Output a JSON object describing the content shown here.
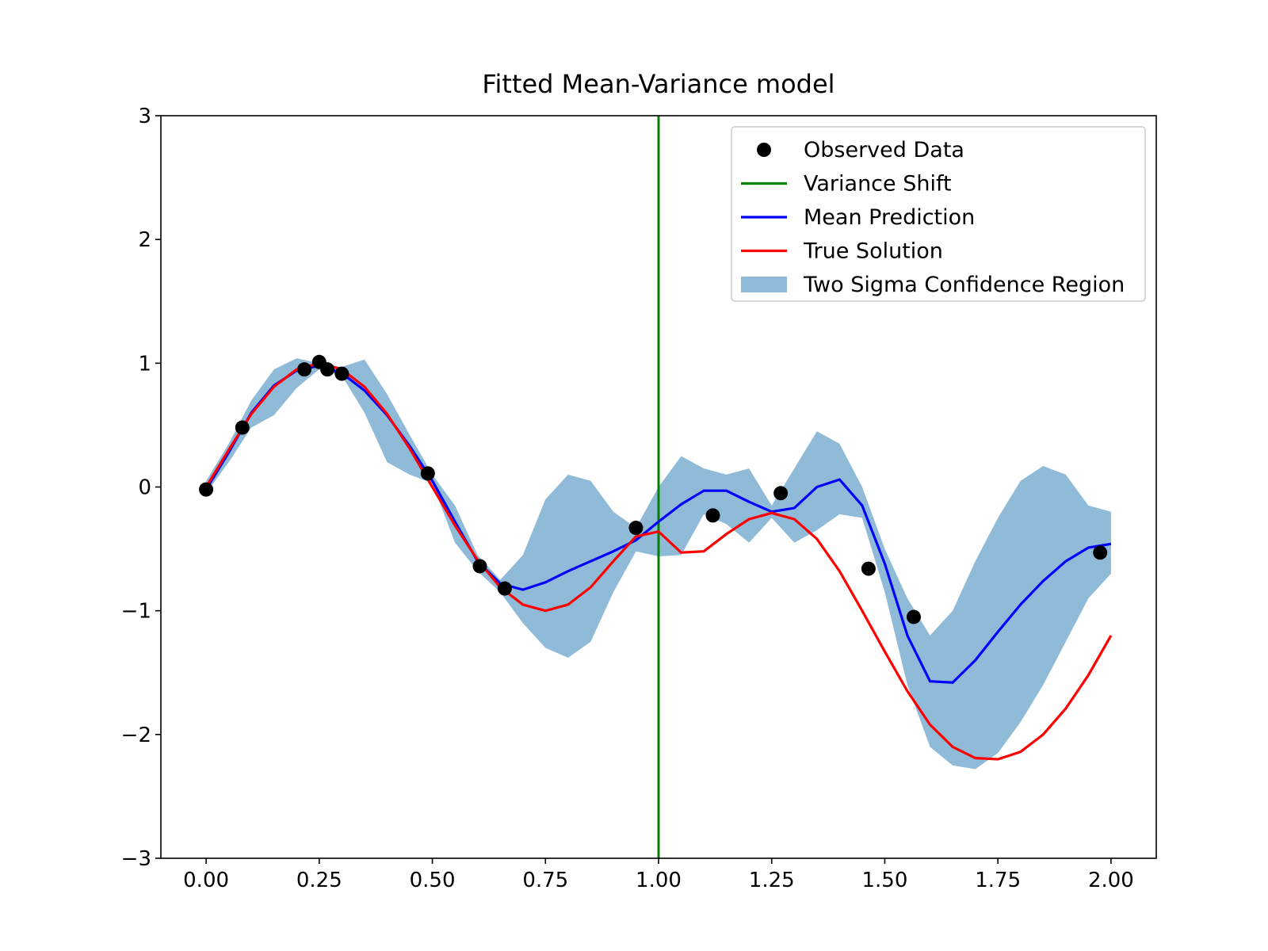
{
  "chart_data": {
    "type": "line",
    "title": "Fitted Mean-Variance model",
    "x": [
      0,
      0.05,
      0.1,
      0.15,
      0.2,
      0.25,
      0.3,
      0.35,
      0.4,
      0.45,
      0.5,
      0.55,
      0.6,
      0.65,
      0.7,
      0.75,
      0.8,
      0.85,
      0.9,
      0.95,
      1.0,
      1.05,
      1.1,
      1.15,
      1.2,
      1.25,
      1.3,
      1.35,
      1.4,
      1.45,
      1.5,
      1.55,
      1.6,
      1.65,
      1.7,
      1.75,
      1.8,
      1.85,
      1.9,
      1.95,
      2.0
    ],
    "series": [
      {
        "name": "Mean Prediction",
        "color": "#0000ff",
        "values": [
          -0.02,
          0.28,
          0.6,
          0.82,
          0.94,
          0.98,
          0.92,
          0.78,
          0.58,
          0.33,
          0.05,
          -0.28,
          -0.6,
          -0.78,
          -0.83,
          -0.77,
          -0.68,
          -0.6,
          -0.52,
          -0.43,
          -0.28,
          -0.14,
          -0.03,
          -0.03,
          -0.12,
          -0.2,
          -0.17,
          0.0,
          0.06,
          -0.15,
          -0.62,
          -1.2,
          -1.57,
          -1.58,
          -1.4,
          -1.17,
          -0.95,
          -0.76,
          -0.6,
          -0.49,
          -0.46
        ]
      },
      {
        "name": "True Solution",
        "color": "#ff0000",
        "values": [
          0,
          0.3,
          0.59,
          0.81,
          0.95,
          1.0,
          0.95,
          0.81,
          0.59,
          0.31,
          0.0,
          -0.31,
          -0.59,
          -0.81,
          -0.95,
          -1.0,
          -0.95,
          -0.81,
          -0.6,
          -0.4,
          -0.36,
          -0.53,
          -0.52,
          -0.38,
          -0.26,
          -0.21,
          -0.26,
          -0.42,
          -0.68,
          -1.0,
          -1.33,
          -1.65,
          -1.92,
          -2.1,
          -2.19,
          -2.2,
          -2.14,
          -2.0,
          -1.79,
          -1.52,
          -1.2
        ]
      }
    ],
    "band": {
      "name": "Two Sigma Confidence Region",
      "color": "#1f77b4",
      "upper": [
        0.05,
        0.35,
        0.7,
        0.95,
        1.04,
        1.0,
        0.97,
        1.03,
        0.75,
        0.42,
        0.1,
        -0.15,
        -0.55,
        -0.75,
        -0.55,
        -0.1,
        0.1,
        0.05,
        -0.2,
        -0.33,
        0.0,
        0.25,
        0.15,
        0.1,
        0.15,
        -0.15,
        0.15,
        0.45,
        0.35,
        0.0,
        -0.5,
        -0.9,
        -1.2,
        -1.0,
        -0.6,
        -0.25,
        0.05,
        0.17,
        0.1,
        -0.15,
        -0.2
      ],
      "lower": [
        -0.05,
        0.2,
        0.48,
        0.58,
        0.8,
        0.95,
        0.9,
        0.6,
        0.2,
        0.1,
        0.03,
        -0.45,
        -0.68,
        -0.85,
        -1.1,
        -1.3,
        -1.38,
        -1.25,
        -0.85,
        -0.52,
        -0.56,
        -0.55,
        -0.22,
        -0.3,
        -0.45,
        -0.25,
        -0.45,
        -0.35,
        -0.22,
        -0.25,
        -0.85,
        -1.6,
        -2.1,
        -2.25,
        -2.28,
        -2.15,
        -1.9,
        -1.6,
        -1.25,
        -0.9,
        -0.7
      ]
    },
    "scatter": {
      "name": "Observed Data",
      "color": "#000000",
      "x": [
        0.0,
        0.08,
        0.217,
        0.25,
        0.268,
        0.3,
        0.49,
        0.605,
        0.66,
        0.95,
        1.12,
        1.27,
        1.464,
        1.564,
        1.976
      ],
      "values": [
        -0.02,
        0.48,
        0.95,
        1.01,
        0.95,
        0.915,
        0.11,
        -0.64,
        -0.82,
        -0.33,
        -0.23,
        -0.05,
        -0.66,
        -1.05,
        -0.53
      ]
    },
    "vline": {
      "name": "Variance Shift",
      "color": "#008000",
      "x": 1.0
    },
    "xlim": [
      -0.1,
      2.1
    ],
    "ylim": [
      -3,
      3
    ],
    "xticks": [
      {
        "value": 0,
        "label": "0.00"
      },
      {
        "value": 0.25,
        "label": "0.25"
      },
      {
        "value": 0.5,
        "label": "0.50"
      },
      {
        "value": 0.75,
        "label": "0.75"
      },
      {
        "value": 1,
        "label": "1.00"
      },
      {
        "value": 1.25,
        "label": "1.25"
      },
      {
        "value": 1.5,
        "label": "1.50"
      },
      {
        "value": 1.75,
        "label": "1.75"
      },
      {
        "value": 2,
        "label": "2.00"
      }
    ],
    "yticks": [
      {
        "value": -3,
        "label": "−3"
      },
      {
        "value": -2,
        "label": "−2"
      },
      {
        "value": -1,
        "label": "−1"
      },
      0,
      1,
      2,
      3
    ],
    "legend": "upper right"
  }
}
